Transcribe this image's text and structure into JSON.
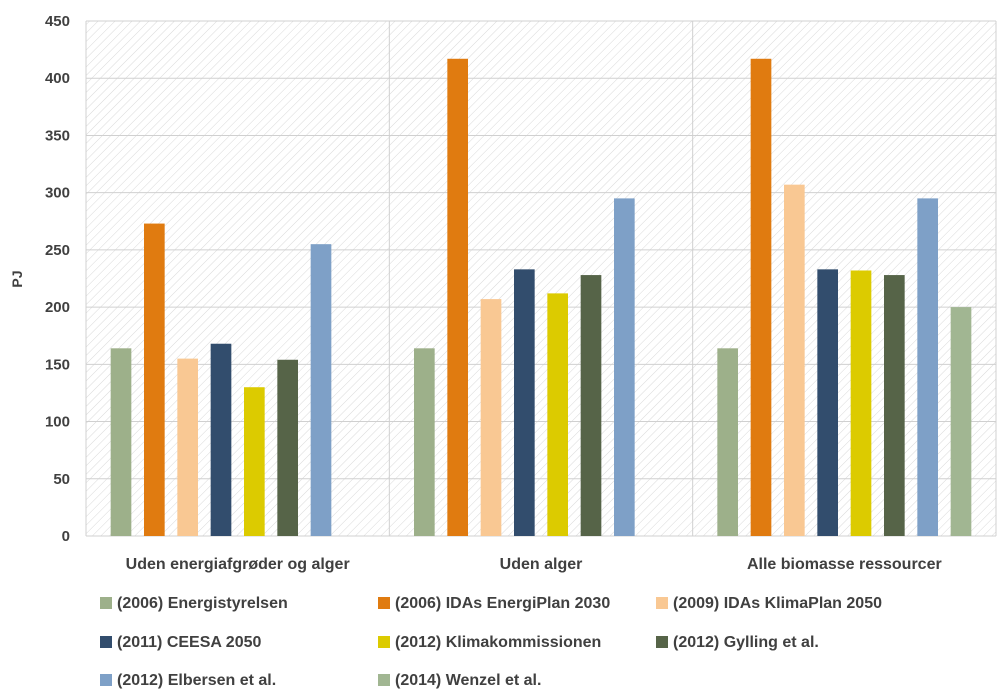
{
  "chart_data": {
    "type": "bar",
    "title": "",
    "xlabel": "",
    "ylabel": "PJ",
    "ylim": [
      0,
      450
    ],
    "yticks": [
      0,
      50,
      100,
      150,
      200,
      250,
      300,
      350,
      400,
      450
    ],
    "grid": true,
    "legend_position": "bottom",
    "categories": [
      "Uden energiafgrøder og alger",
      "Uden alger",
      "Alle biomasse ressourcer"
    ],
    "series": [
      {
        "name": "(2006) Energistyrelsen",
        "color": "#9DB08A",
        "values": [
          164,
          164,
          164
        ]
      },
      {
        "name": "(2006) IDAs EnergiPlan 2030",
        "color": "#E07B10",
        "values": [
          273,
          417,
          417
        ]
      },
      {
        "name": "(2009) IDAs KlimaPlan 2050",
        "color": "#F9C893",
        "values": [
          155,
          207,
          307
        ]
      },
      {
        "name": "(2011) CEESA 2050",
        "color": "#324D6D",
        "values": [
          168,
          233,
          233
        ]
      },
      {
        "name": "(2012) Klimakommissionen",
        "color": "#DCCB00",
        "values": [
          130,
          212,
          232
        ]
      },
      {
        "name": "(2012) Gylling et al.",
        "color": "#566448",
        "values": [
          154,
          228,
          228
        ]
      },
      {
        "name": "(2012) Elbersen et al.",
        "color": "#7EA0C7",
        "values": [
          255,
          295,
          295
        ]
      },
      {
        "name": "(2014) Wenzel et al.",
        "color": "#A1B692",
        "values": [
          null,
          null,
          200
        ]
      }
    ]
  }
}
